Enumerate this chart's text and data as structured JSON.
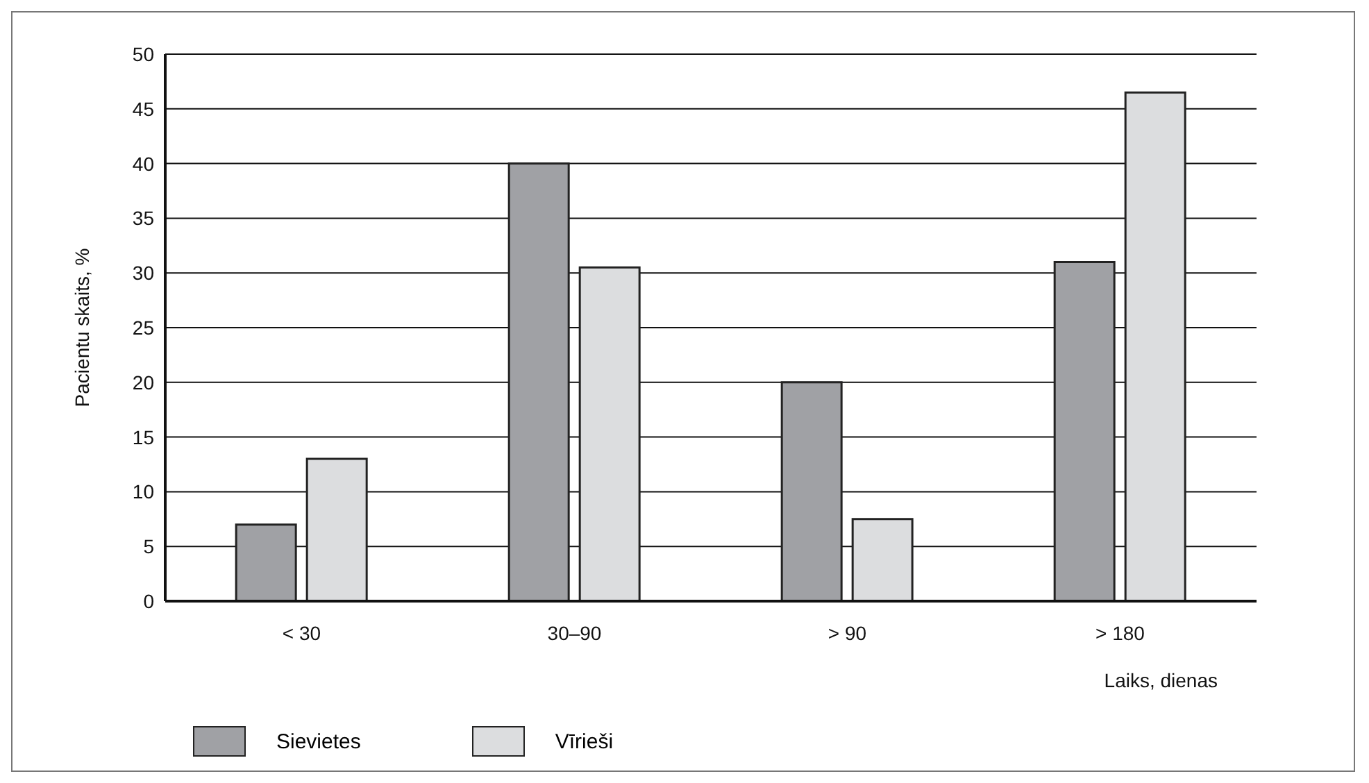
{
  "chart_data": {
    "type": "bar",
    "categories": [
      "< 30",
      "30–90",
      "> 90",
      "> 180"
    ],
    "series": [
      {
        "name": "Sievietes",
        "color": "#a0a1a5",
        "values": [
          7,
          40,
          20,
          31
        ]
      },
      {
        "name": "Vīrieši",
        "color": "#dcdddf",
        "values": [
          13,
          30.5,
          7.5,
          46.5
        ]
      }
    ],
    "ylabel": "Pacientu skaits, %",
    "xlabel": "Laiks, dienas",
    "ylim": [
      0,
      50
    ],
    "yticks": [
      0,
      5,
      10,
      15,
      20,
      25,
      30,
      35,
      40,
      45,
      50
    ],
    "grid": "y",
    "legend": "bottom left"
  }
}
